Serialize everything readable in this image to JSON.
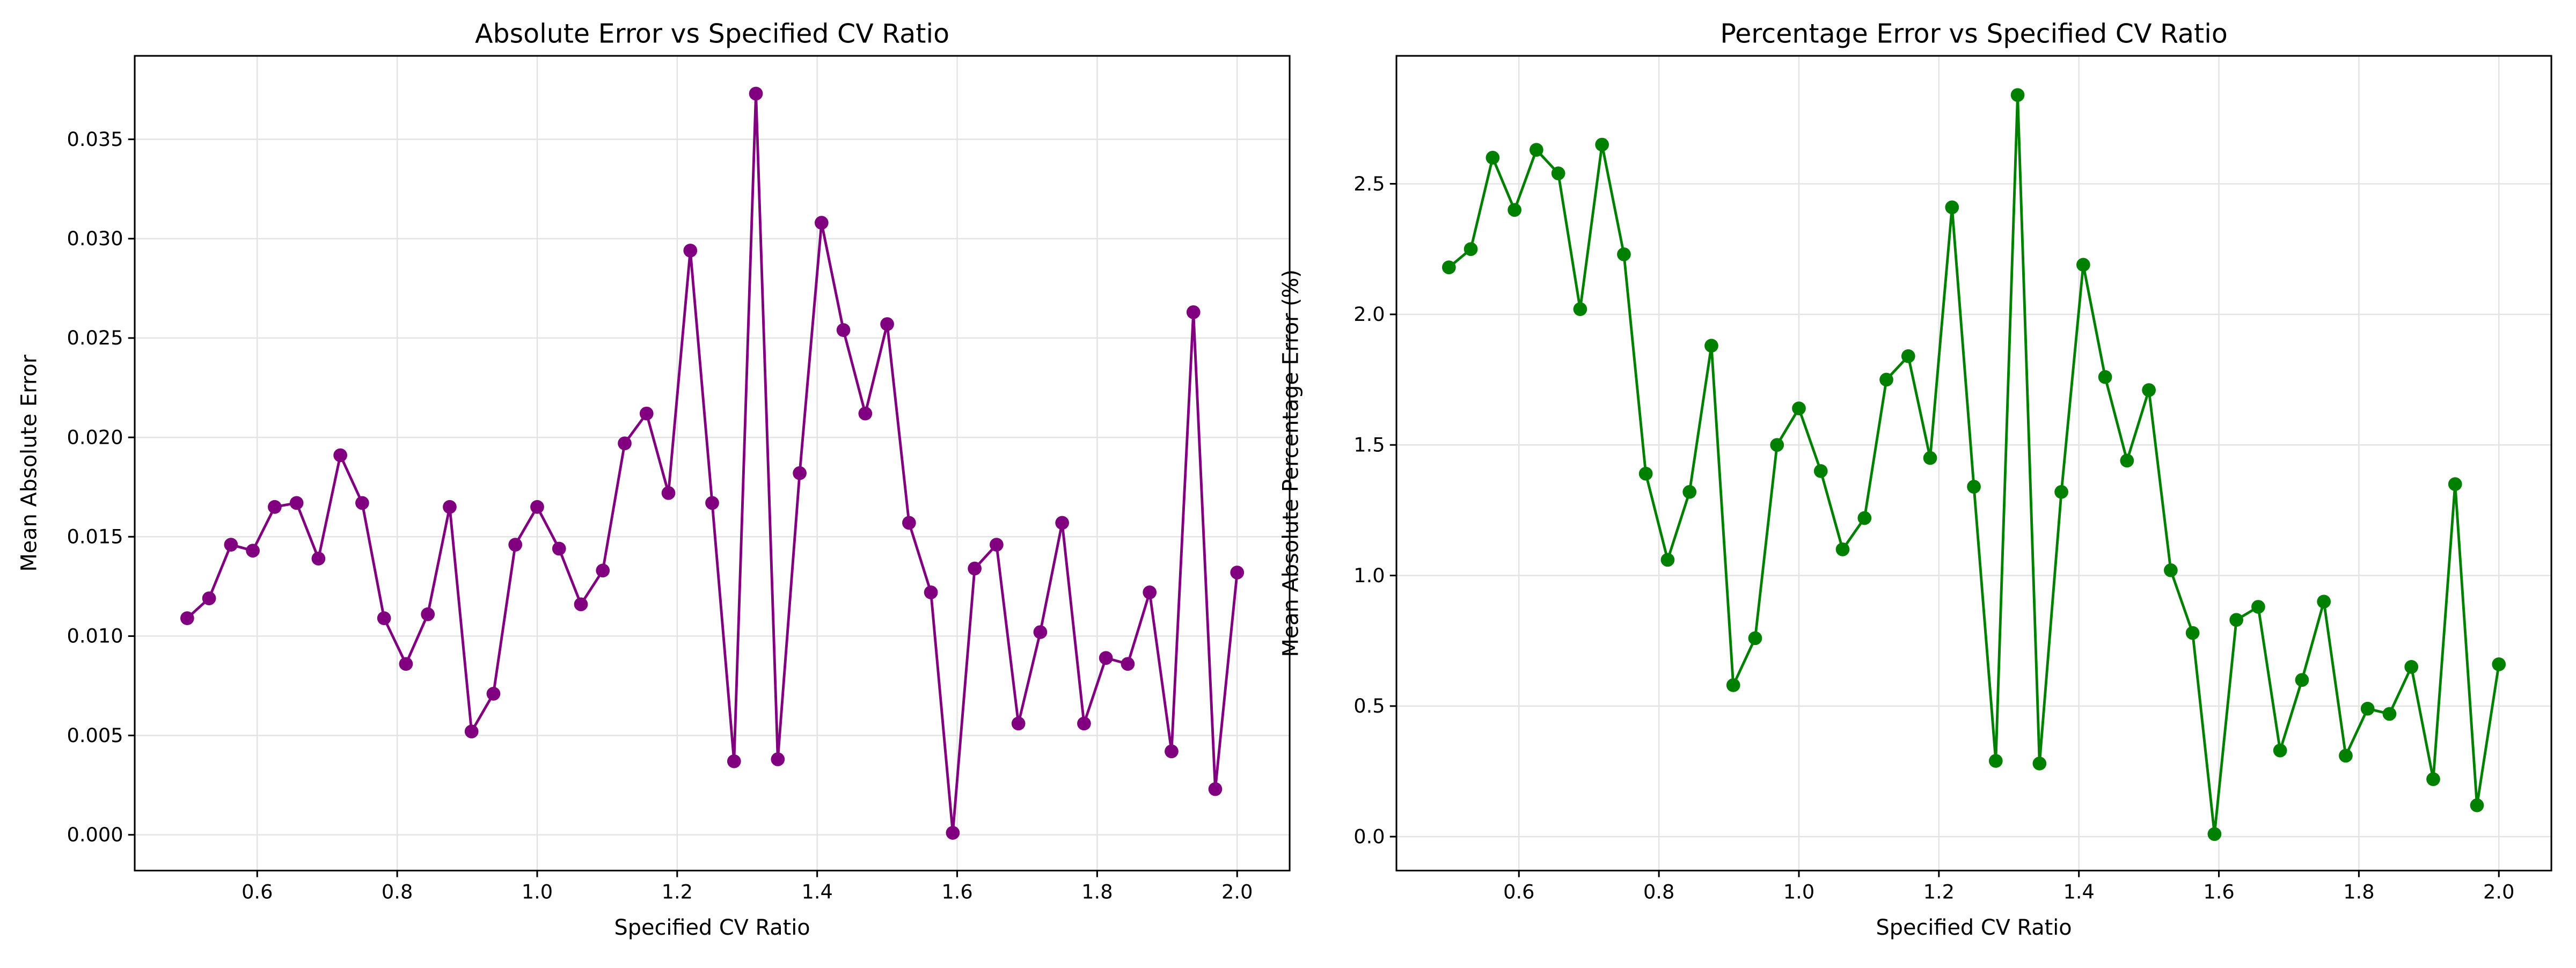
{
  "chart_data": [
    {
      "type": "line",
      "title": "Absolute Error vs Specified CV Ratio",
      "x_label": "Specified CV Ratio",
      "y_label": "Mean Absolute Error",
      "x": [
        0.5,
        0.53125,
        0.5625,
        0.59375,
        0.625,
        0.65625,
        0.6875,
        0.71875,
        0.75,
        0.78125,
        0.8125,
        0.84375,
        0.875,
        0.90625,
        0.9375,
        0.96875,
        1.0,
        1.03125,
        1.0625,
        1.09375,
        1.125,
        1.15625,
        1.1875,
        1.21875,
        1.25,
        1.28125,
        1.3125,
        1.34375,
        1.375,
        1.40625,
        1.4375,
        1.46875,
        1.5,
        1.53125,
        1.5625,
        1.59375,
        1.625,
        1.65625,
        1.6875,
        1.71875,
        1.75,
        1.78125,
        1.8125,
        1.84375,
        1.875,
        1.90625,
        1.9375,
        1.96875,
        2.0
      ],
      "series": [
        {
          "name": "Mean Absolute Error",
          "color": "#800080",
          "values": [
            0.0109,
            0.0119,
            0.0146,
            0.0143,
            0.0165,
            0.0167,
            0.0139,
            0.0191,
            0.0167,
            0.0109,
            0.0086,
            0.0111,
            0.0165,
            0.0052,
            0.0071,
            0.0146,
            0.0165,
            0.0144,
            0.0116,
            0.0133,
            0.0197,
            0.0212,
            0.0172,
            0.0294,
            0.0167,
            0.0037,
            0.0373,
            0.0038,
            0.0182,
            0.0308,
            0.0254,
            0.0212,
            0.0257,
            0.0157,
            0.0122,
            0.0001,
            0.0134,
            0.0146,
            0.0056,
            0.0102,
            0.0157,
            0.0056,
            0.0089,
            0.0086,
            0.0122,
            0.0042,
            0.0263,
            0.0023,
            0.0132
          ]
        }
      ],
      "xlim": [
        0.425,
        2.075
      ],
      "ylim": [
        -0.0018,
        0.0392
      ],
      "xticks": [
        0.6,
        0.8,
        {
          "value": 1.0,
          "label": "1.0"
        },
        1.2,
        1.4,
        1.6,
        1.8,
        {
          "value": 2.0,
          "label": "2.0"
        }
      ],
      "yticks": [
        {
          "value": 0,
          "label": "0.000"
        },
        {
          "value": 0.005,
          "label": "0.005"
        },
        {
          "value": 0.01,
          "label": "0.010"
        },
        {
          "value": 0.015,
          "label": "0.015"
        },
        {
          "value": 0.02,
          "label": "0.020"
        },
        {
          "value": 0.025,
          "label": "0.025"
        },
        {
          "value": 0.03,
          "label": "0.030"
        },
        {
          "value": 0.035,
          "label": "0.035"
        }
      ],
      "grid": true
    },
    {
      "type": "line",
      "title": "Percentage Error vs Specified CV Ratio",
      "x_label": "Specified CV Ratio",
      "y_label": "Mean Absolute Percentage Error (%)",
      "x": [
        0.5,
        0.53125,
        0.5625,
        0.59375,
        0.625,
        0.65625,
        0.6875,
        0.71875,
        0.75,
        0.78125,
        0.8125,
        0.84375,
        0.875,
        0.90625,
        0.9375,
        0.96875,
        1.0,
        1.03125,
        1.0625,
        1.09375,
        1.125,
        1.15625,
        1.1875,
        1.21875,
        1.25,
        1.28125,
        1.3125,
        1.34375,
        1.375,
        1.40625,
        1.4375,
        1.46875,
        1.5,
        1.53125,
        1.5625,
        1.59375,
        1.625,
        1.65625,
        1.6875,
        1.71875,
        1.75,
        1.78125,
        1.8125,
        1.84375,
        1.875,
        1.90625,
        1.9375,
        1.96875,
        2.0
      ],
      "series": [
        {
          "name": "Mean Absolute Percentage Error (%)",
          "color": "#008000",
          "values": [
            2.18,
            2.25,
            2.6,
            2.4,
            2.63,
            2.54,
            2.02,
            2.65,
            2.23,
            1.39,
            1.06,
            1.32,
            1.88,
            0.58,
            0.76,
            1.5,
            1.64,
            1.4,
            1.1,
            1.22,
            1.75,
            1.84,
            1.45,
            2.41,
            1.34,
            0.29,
            2.84,
            0.28,
            1.32,
            2.19,
            1.76,
            1.44,
            1.71,
            1.02,
            0.78,
            0.01,
            0.83,
            0.88,
            0.33,
            0.6,
            0.9,
            0.31,
            0.49,
            0.47,
            0.65,
            0.22,
            1.35,
            0.12,
            0.66
          ]
        }
      ],
      "xlim": [
        0.425,
        2.075
      ],
      "ylim": [
        -0.13,
        2.99
      ],
      "xticks": [
        0.6,
        0.8,
        {
          "value": 1.0,
          "label": "1.0"
        },
        1.2,
        1.4,
        1.6,
        1.8,
        {
          "value": 2.0,
          "label": "2.0"
        }
      ],
      "yticks": [
        {
          "value": 0,
          "label": "0.0"
        },
        0.5,
        {
          "value": 1.0,
          "label": "1.0"
        },
        1.5,
        {
          "value": 2.0,
          "label": "2.0"
        },
        2.5
      ],
      "grid": true
    }
  ]
}
